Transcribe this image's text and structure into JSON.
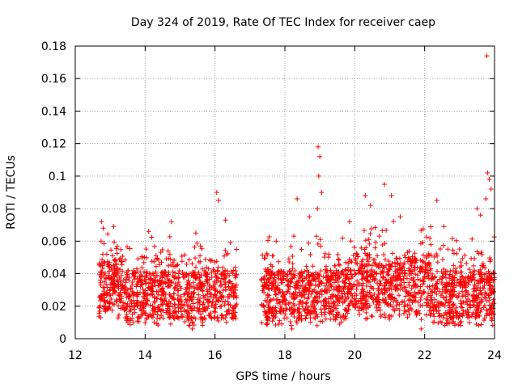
{
  "chart_data": {
    "type": "scatter",
    "title": "Day 324 of 2019, Rate Of TEC Index for receiver caep",
    "xlabel": "GPS time / hours",
    "ylabel": "ROTI / TECUs",
    "xlim": [
      12,
      24
    ],
    "ylim": [
      0,
      0.18
    ],
    "x_ticks": [
      12,
      14,
      16,
      18,
      20,
      22,
      24
    ],
    "y_ticks": [
      0,
      0.02,
      0.04,
      0.06,
      0.08,
      0.1,
      0.12,
      0.14,
      0.16,
      0.18
    ],
    "x_tick_labels": [
      "12",
      "14",
      "16",
      "18",
      "20",
      "22",
      "24"
    ],
    "y_tick_labels": [
      "0",
      "0.02",
      "0.04",
      "0.06",
      "0.08",
      "0.1",
      "0.12",
      "0.14",
      "0.16",
      "0.18"
    ],
    "grid": true,
    "marker": "+",
    "color": "#ff0000",
    "series": [
      {
        "name": "ROTI",
        "note": "dense point cloud: baseline 0.01-0.05 TECU for 12.7-16.6 h and 17.3-24 h; points below are notable peaks",
        "segments": [
          [
            12.68,
            16.62
          ],
          [
            17.32,
            24.0
          ]
        ],
        "points": [
          {
            "x": 12.75,
            "y": 0.072
          },
          {
            "x": 12.8,
            "y": 0.068
          },
          {
            "x": 13.1,
            "y": 0.069
          },
          {
            "x": 14.1,
            "y": 0.066
          },
          {
            "x": 14.75,
            "y": 0.072
          },
          {
            "x": 15.45,
            "y": 0.065
          },
          {
            "x": 16.05,
            "y": 0.09
          },
          {
            "x": 16.1,
            "y": 0.085
          },
          {
            "x": 16.3,
            "y": 0.073
          },
          {
            "x": 15.35,
            "y": 0.006
          },
          {
            "x": 17.75,
            "y": 0.06
          },
          {
            "x": 18.35,
            "y": 0.086
          },
          {
            "x": 18.2,
            "y": 0.006
          },
          {
            "x": 18.7,
            "y": 0.075
          },
          {
            "x": 18.95,
            "y": 0.118
          },
          {
            "x": 19.0,
            "y": 0.112
          },
          {
            "x": 18.97,
            "y": 0.1
          },
          {
            "x": 19.05,
            "y": 0.09
          },
          {
            "x": 18.93,
            "y": 0.08
          },
          {
            "x": 18.9,
            "y": 0.063
          },
          {
            "x": 19.85,
            "y": 0.072
          },
          {
            "x": 20.3,
            "y": 0.088
          },
          {
            "x": 20.45,
            "y": 0.082
          },
          {
            "x": 20.85,
            "y": 0.095
          },
          {
            "x": 21.05,
            "y": 0.088
          },
          {
            "x": 21.3,
            "y": 0.075
          },
          {
            "x": 21.9,
            "y": 0.006
          },
          {
            "x": 22.35,
            "y": 0.085
          },
          {
            "x": 22.55,
            "y": 0.069
          },
          {
            "x": 23.5,
            "y": 0.08
          },
          {
            "x": 23.6,
            "y": 0.076
          },
          {
            "x": 23.78,
            "y": 0.174
          },
          {
            "x": 23.8,
            "y": 0.102
          },
          {
            "x": 23.85,
            "y": 0.098
          },
          {
            "x": 23.9,
            "y": 0.092
          },
          {
            "x": 23.75,
            "y": 0.086
          }
        ]
      }
    ]
  }
}
